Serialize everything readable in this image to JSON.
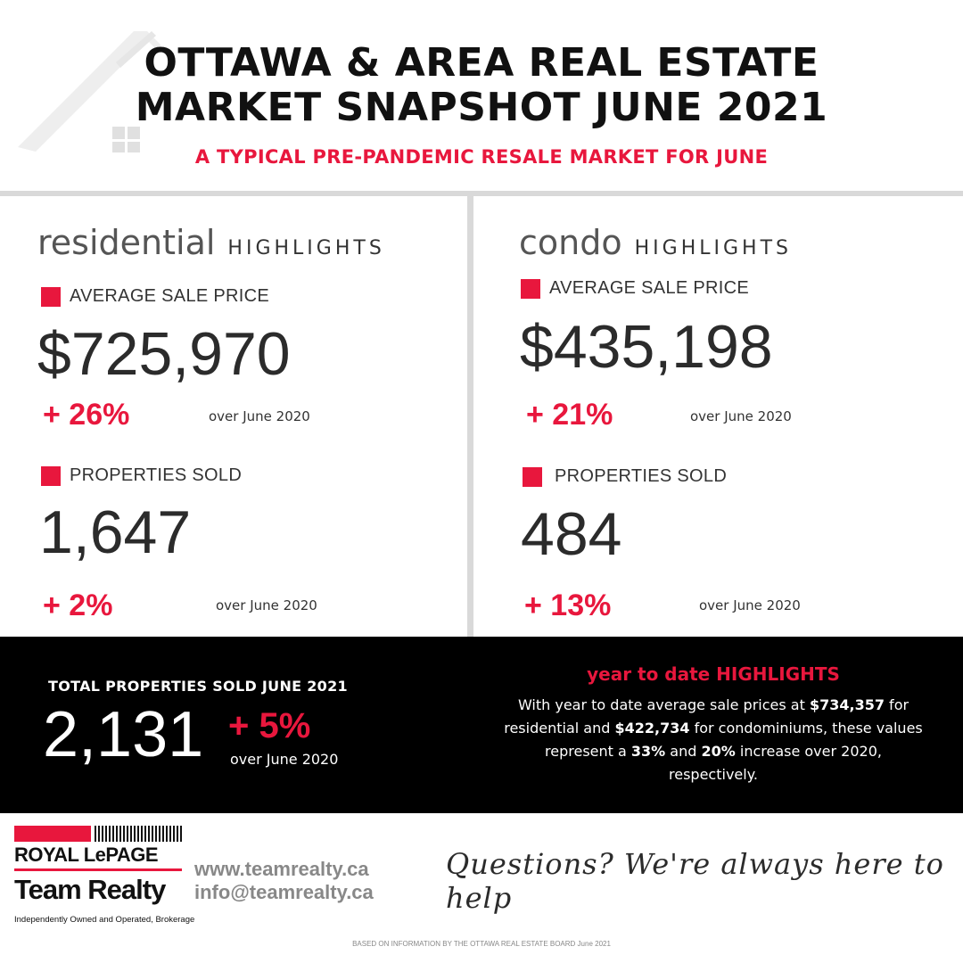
{
  "header": {
    "title_line1": "OTTAWA & AREA REAL ESTATE",
    "title_line2": "MARKET SNAPSHOT JUNE 2021",
    "subtitle": "A TYPICAL PRE-PANDEMIC RESALE MARKET FOR  JUNE"
  },
  "residential": {
    "name": "residential",
    "highlights": "HIGHLIGHTS",
    "avg_label": "AVERAGE SALE PRICE",
    "avg_value": "$725,970",
    "avg_change": "+ 26%",
    "avg_over": "over June 2020",
    "sold_label": "PROPERTIES SOLD",
    "sold_value": "1,647",
    "sold_change": "+ 2%",
    "sold_over": "over June 2020"
  },
  "condo": {
    "name": "condo",
    "highlights": "HIGHLIGHTS",
    "avg_label": "AVERAGE SALE PRICE",
    "avg_value": "$435,198",
    "avg_change": "+ 21%",
    "avg_over": "over June 2020",
    "sold_label": "PROPERTIES SOLD",
    "sold_value": "484",
    "sold_change": "+ 13%",
    "sold_over": "over June 2020"
  },
  "total": {
    "label": "TOTAL PROPERTIES SOLD JUNE 2021",
    "value": "2,131",
    "change": "+ 5%",
    "over": "over June 2020"
  },
  "ytd": {
    "title": "year to date HIGHLIGHTS",
    "t1": "With year to date average sale prices at ",
    "v1": "$734,357",
    "t2": " for residential and ",
    "v2": "$422,734",
    "t3": " for condominiums, these values represent a ",
    "v3": "33%",
    "t4": " and ",
    "v4": "20%",
    "t5": " increase over 2020, respectively."
  },
  "footer": {
    "brand_top": "ROYAL LePAGE",
    "brand_team": "Team Realty",
    "brand_small": "Independently Owned and Operated, Brokerage",
    "website": "www.teamrealty.ca",
    "email": "info@teamrealty.ca",
    "questions": "Questions? We're always here to help",
    "source": "BASED ON INFORMATION BY THE OTTAWA REAL ESTATE BOARD June 2021"
  },
  "colors": {
    "accent": "#e8173d",
    "band": "#000000",
    "divider": "#d9d9d9"
  }
}
